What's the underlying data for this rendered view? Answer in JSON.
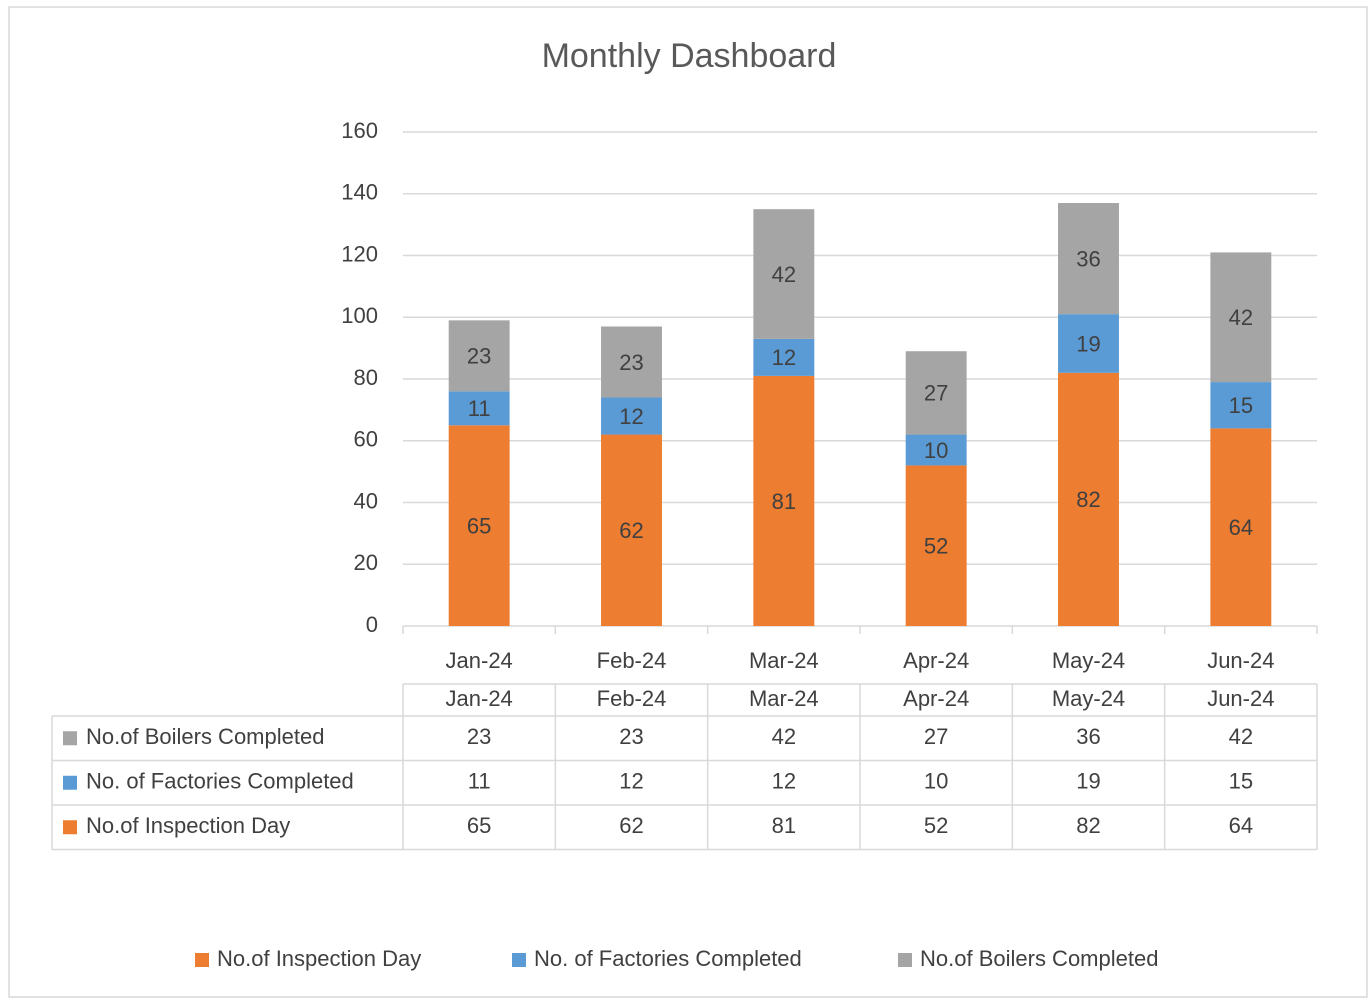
{
  "chart_data": {
    "type": "bar",
    "stacked": true,
    "title": "Monthly Dashboard",
    "categories": [
      "Jan-24",
      "Feb-24",
      "Mar-24",
      "Apr-24",
      "May-24",
      "Jun-24"
    ],
    "series": [
      {
        "name": "No.of Inspection Day",
        "color": "#ed7d31",
        "values": [
          65,
          62,
          81,
          52,
          82,
          64
        ]
      },
      {
        "name": "No. of Factories Completed",
        "color": "#5b9bd5",
        "values": [
          11,
          12,
          12,
          10,
          19,
          15
        ]
      },
      {
        "name": "No.of Boilers Completed",
        "color": "#a5a5a5",
        "values": [
          23,
          23,
          42,
          27,
          36,
          42
        ]
      }
    ],
    "ylim": [
      0,
      160
    ],
    "yticks": [
      0,
      20,
      40,
      60,
      80,
      100,
      120,
      140,
      160
    ],
    "grid": true,
    "data_table": true,
    "legend": "bottom"
  }
}
